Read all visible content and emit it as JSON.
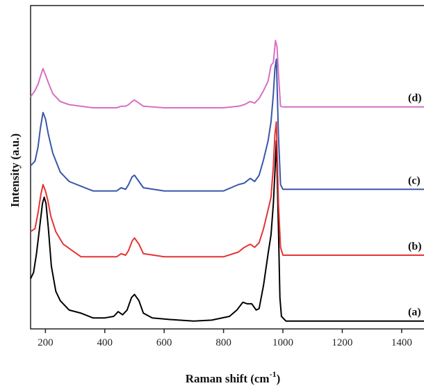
{
  "chart_data": {
    "type": "line",
    "xlabel": "Raman shift (cm",
    "xlabel_sup": "-1",
    "xlabel_close": ")",
    "ylabel": "Intensity (a.u.)",
    "xlim": [
      150,
      1480
    ],
    "xticks": [
      200,
      400,
      600,
      800,
      1000,
      1200,
      1400
    ],
    "ylim": [
      0,
      100
    ],
    "y_ticks_labeled": false,
    "grid": false,
    "series": [
      {
        "label": "(a)",
        "color": "#000000",
        "points": [
          [
            150,
            16
          ],
          [
            160,
            18
          ],
          [
            170,
            24
          ],
          [
            180,
            32
          ],
          [
            190,
            40
          ],
          [
            196,
            42
          ],
          [
            202,
            40
          ],
          [
            210,
            32
          ],
          [
            220,
            20
          ],
          [
            235,
            12
          ],
          [
            250,
            9
          ],
          [
            280,
            6
          ],
          [
            320,
            5
          ],
          [
            360,
            3.5
          ],
          [
            400,
            3.5
          ],
          [
            430,
            4
          ],
          [
            445,
            5.5
          ],
          [
            460,
            4.5
          ],
          [
            475,
            6
          ],
          [
            490,
            10
          ],
          [
            500,
            11
          ],
          [
            515,
            9
          ],
          [
            530,
            5
          ],
          [
            560,
            3.5
          ],
          [
            620,
            3
          ],
          [
            700,
            2.5
          ],
          [
            760,
            2.8
          ],
          [
            820,
            4
          ],
          [
            845,
            6
          ],
          [
            865,
            8.5
          ],
          [
            880,
            8
          ],
          [
            895,
            8
          ],
          [
            910,
            6
          ],
          [
            920,
            6.5
          ],
          [
            935,
            14
          ],
          [
            950,
            24
          ],
          [
            960,
            30
          ],
          [
            968,
            40
          ],
          [
            973,
            50
          ],
          [
            978,
            60
          ],
          [
            985,
            32
          ],
          [
            990,
            10
          ],
          [
            995,
            4
          ],
          [
            1010,
            2.5
          ],
          [
            1100,
            2.5
          ],
          [
            1200,
            2.5
          ],
          [
            1300,
            2.5
          ],
          [
            1400,
            2.5
          ],
          [
            1480,
            2.5
          ]
        ]
      },
      {
        "label": "(b)",
        "color": "#e63333",
        "points": [
          [
            150,
            31
          ],
          [
            165,
            32
          ],
          [
            175,
            37
          ],
          [
            185,
            43
          ],
          [
            192,
            46
          ],
          [
            200,
            44
          ],
          [
            208,
            41
          ],
          [
            218,
            36
          ],
          [
            235,
            31
          ],
          [
            260,
            27
          ],
          [
            290,
            25
          ],
          [
            320,
            23
          ],
          [
            360,
            23
          ],
          [
            400,
            23
          ],
          [
            440,
            23
          ],
          [
            455,
            24
          ],
          [
            470,
            23.5
          ],
          [
            480,
            25
          ],
          [
            492,
            28
          ],
          [
            500,
            29
          ],
          [
            515,
            27
          ],
          [
            530,
            24
          ],
          [
            600,
            23
          ],
          [
            700,
            23
          ],
          [
            800,
            23
          ],
          [
            850,
            24.5
          ],
          [
            870,
            26
          ],
          [
            890,
            27
          ],
          [
            905,
            26
          ],
          [
            920,
            27.5
          ],
          [
            935,
            32
          ],
          [
            950,
            38
          ],
          [
            960,
            42
          ],
          [
            968,
            52
          ],
          [
            973,
            62
          ],
          [
            978,
            66
          ],
          [
            985,
            40
          ],
          [
            992,
            26
          ],
          [
            1000,
            23.5
          ],
          [
            1100,
            23.5
          ],
          [
            1200,
            23.5
          ],
          [
            1300,
            23.5
          ],
          [
            1400,
            23.5
          ],
          [
            1480,
            23.5
          ]
        ]
      },
      {
        "label": "(c)",
        "color": "#3a57a8",
        "points": [
          [
            150,
            52
          ],
          [
            165,
            53.5
          ],
          [
            175,
            58
          ],
          [
            183,
            64
          ],
          [
            192,
            69
          ],
          [
            200,
            67
          ],
          [
            210,
            62
          ],
          [
            225,
            56
          ],
          [
            250,
            50
          ],
          [
            280,
            47
          ],
          [
            320,
            45.5
          ],
          [
            360,
            44
          ],
          [
            400,
            44
          ],
          [
            440,
            44
          ],
          [
            455,
            45
          ],
          [
            470,
            44.5
          ],
          [
            480,
            46
          ],
          [
            492,
            48.5
          ],
          [
            500,
            49
          ],
          [
            515,
            47
          ],
          [
            530,
            45
          ],
          [
            600,
            44
          ],
          [
            700,
            44
          ],
          [
            800,
            44
          ],
          [
            850,
            46
          ],
          [
            870,
            46.5
          ],
          [
            890,
            48
          ],
          [
            905,
            47
          ],
          [
            920,
            49
          ],
          [
            935,
            54
          ],
          [
            950,
            60
          ],
          [
            960,
            66
          ],
          [
            968,
            75
          ],
          [
            973,
            83
          ],
          [
            978,
            86
          ],
          [
            985,
            62
          ],
          [
            992,
            46
          ],
          [
            1000,
            44.5
          ],
          [
            1100,
            44.5
          ],
          [
            1200,
            44.5
          ],
          [
            1300,
            44.5
          ],
          [
            1400,
            44.5
          ],
          [
            1480,
            44.5
          ]
        ]
      },
      {
        "label": "(d)",
        "color": "#d670c2",
        "points": [
          [
            150,
            74
          ],
          [
            165,
            76
          ],
          [
            175,
            78
          ],
          [
            185,
            81
          ],
          [
            192,
            83
          ],
          [
            200,
            81
          ],
          [
            210,
            78.5
          ],
          [
            225,
            75
          ],
          [
            250,
            72.5
          ],
          [
            280,
            71.5
          ],
          [
            320,
            71
          ],
          [
            360,
            70.5
          ],
          [
            400,
            70.5
          ],
          [
            440,
            70.5
          ],
          [
            455,
            71
          ],
          [
            470,
            71
          ],
          [
            480,
            71.5
          ],
          [
            492,
            72.5
          ],
          [
            500,
            73
          ],
          [
            515,
            72
          ],
          [
            530,
            71
          ],
          [
            600,
            70.5
          ],
          [
            700,
            70.5
          ],
          [
            800,
            70.5
          ],
          [
            850,
            71
          ],
          [
            870,
            71.5
          ],
          [
            890,
            72.5
          ],
          [
            905,
            72
          ],
          [
            920,
            73.5
          ],
          [
            935,
            76
          ],
          [
            950,
            79
          ],
          [
            960,
            84
          ],
          [
            968,
            85
          ],
          [
            975,
            92
          ],
          [
            980,
            90
          ],
          [
            986,
            80
          ],
          [
            992,
            71
          ],
          [
            1000,
            70.8
          ],
          [
            1100,
            70.8
          ],
          [
            1200,
            70.8
          ],
          [
            1300,
            70.8
          ],
          [
            1400,
            70.8
          ],
          [
            1480,
            70.8
          ]
        ]
      }
    ]
  }
}
